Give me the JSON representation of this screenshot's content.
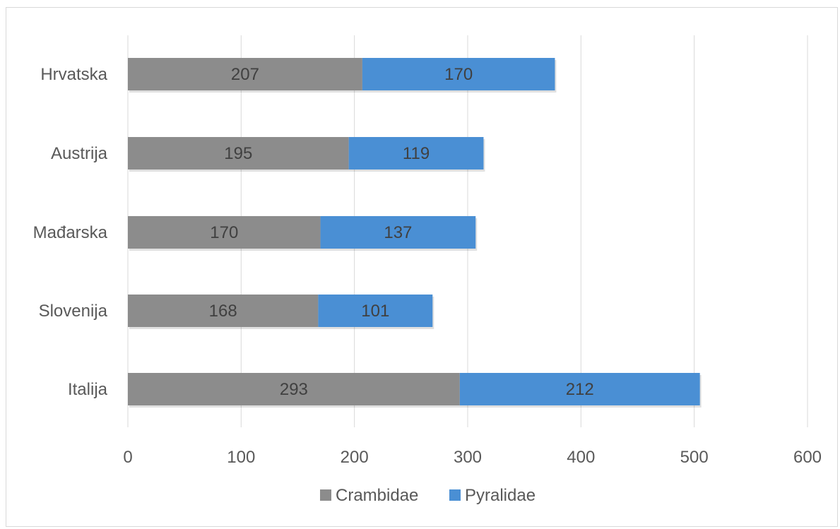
{
  "chart_data": {
    "type": "bar",
    "orientation": "horizontal",
    "stacked": true,
    "categories": [
      "Italija",
      "Slovenija",
      "Mađarska",
      "Austrija",
      "Hrvatska"
    ],
    "series": [
      {
        "name": "Crambidae",
        "values": [
          293,
          168,
          170,
          195,
          207
        ],
        "color": "#8c8c8c"
      },
      {
        "name": "Pyralidae",
        "values": [
          212,
          101,
          137,
          119,
          170
        ],
        "color": "#4a8fd4"
      }
    ],
    "xlim": [
      0,
      600
    ],
    "xticks": [
      "0",
      "100",
      "200",
      "300",
      "400",
      "500",
      "600"
    ],
    "xtick_values": [
      0,
      100,
      200,
      300,
      400,
      500,
      600
    ],
    "grid": "vertical",
    "legend": "bottom",
    "data_labels": true
  },
  "colors": {
    "crambidae": "#8c8c8c",
    "pyralidae": "#4a8fd4",
    "gridline": "#d9d9d9",
    "axis_text": "#595959"
  }
}
